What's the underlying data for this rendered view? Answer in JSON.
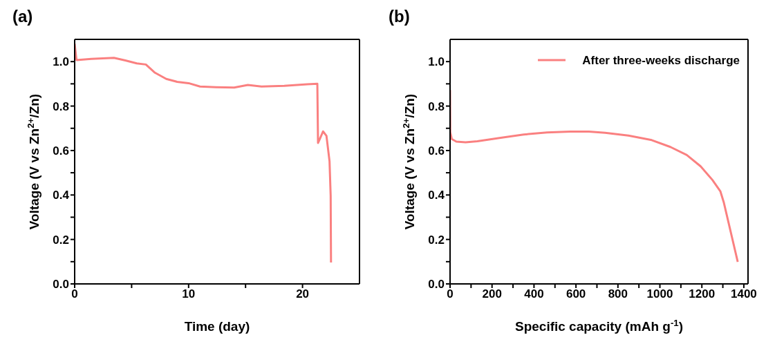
{
  "chart_data": [
    {
      "type": "line",
      "title": "(a)",
      "xlabel": "Time (day)",
      "ylabel": "Voltage (V vs Zn$^{2+}$/Zn)",
      "xlim": [
        0,
        25
      ],
      "xticks": [
        0,
        {
          "value": 5,
          "label": null
        },
        10,
        {
          "value": 15,
          "label": null
        },
        20
      ],
      "ylim": [
        0,
        1.1
      ],
      "yticks": [
        {
          "value": 0,
          "label": "0.0"
        },
        {
          "value": 0.1,
          "label": null
        },
        0.2,
        {
          "value": 0.3,
          "label": null
        },
        0.4,
        {
          "value": 0.5,
          "label": null
        },
        0.6,
        {
          "value": 0.7,
          "label": null
        },
        0.8,
        {
          "value": 0.9,
          "label": null
        },
        {
          "value": 1,
          "label": "1.0"
        }
      ],
      "series": [
        {
          "color": "#fa8080",
          "x": [
            0,
            0.16,
            1.46,
            3.45,
            4.45,
            5.45,
            6.25,
            7.05,
            8.04,
            9.0,
            10.0,
            11.0,
            12.4,
            14.0,
            15.2,
            16.4,
            18.4,
            20.4,
            21.3,
            21.36,
            21.5,
            21.8,
            22.1,
            22.37,
            22.47,
            22.5
          ],
          "values": [
            1.08,
            1.007,
            1.012,
            1.017,
            1.005,
            0.992,
            0.987,
            0.95,
            0.922,
            0.909,
            0.903,
            0.888,
            0.885,
            0.883,
            0.895,
            0.888,
            0.891,
            0.898,
            0.9,
            0.634,
            0.65,
            0.686,
            0.666,
            0.552,
            0.396,
            0.096
          ]
        }
      ]
    },
    {
      "type": "line",
      "title": "(b)",
      "xlabel": "Specific capacity (mAh g$^{-1}$)",
      "ylabel": "Voltage (V vs Zn$^{2+}$/Zn)",
      "legend": "top right",
      "xlim": [
        0,
        1420
      ],
      "xticks": [
        0,
        {
          "value": 100,
          "label": null
        },
        200,
        {
          "value": 300,
          "label": null
        },
        400,
        {
          "value": 500,
          "label": null
        },
        600,
        {
          "value": 700,
          "label": null
        },
        800,
        {
          "value": 900,
          "label": null
        },
        1000,
        {
          "value": 1100,
          "label": null
        },
        1200,
        {
          "value": 1300,
          "label": null
        },
        1400
      ],
      "ylim": [
        0,
        1.1
      ],
      "yticks": [
        {
          "value": 0,
          "label": "0.0"
        },
        {
          "value": 0.1,
          "label": null
        },
        0.2,
        {
          "value": 0.3,
          "label": null
        },
        0.4,
        {
          "value": 0.5,
          "label": null
        },
        0.6,
        {
          "value": 0.7,
          "label": null
        },
        0.8,
        {
          "value": 0.9,
          "label": null
        },
        {
          "value": 1,
          "label": "1.0"
        }
      ],
      "series": [
        {
          "name": "After three-weeks discharge",
          "color": "#fa8080",
          "x": [
            0,
            1,
            8,
            30,
            74,
            130,
            241,
            351,
            462,
            573,
            662,
            739,
            850,
            961,
            1050,
            1128,
            1194,
            1250,
            1288,
            1305,
            1338,
            1371
          ],
          "values": [
            0.872,
            0.683,
            0.652,
            0.64,
            0.637,
            0.642,
            0.657,
            0.672,
            0.681,
            0.685,
            0.685,
            0.68,
            0.667,
            0.647,
            0.616,
            0.58,
            0.529,
            0.468,
            0.417,
            0.365,
            0.232,
            0.099
          ]
        }
      ]
    }
  ]
}
